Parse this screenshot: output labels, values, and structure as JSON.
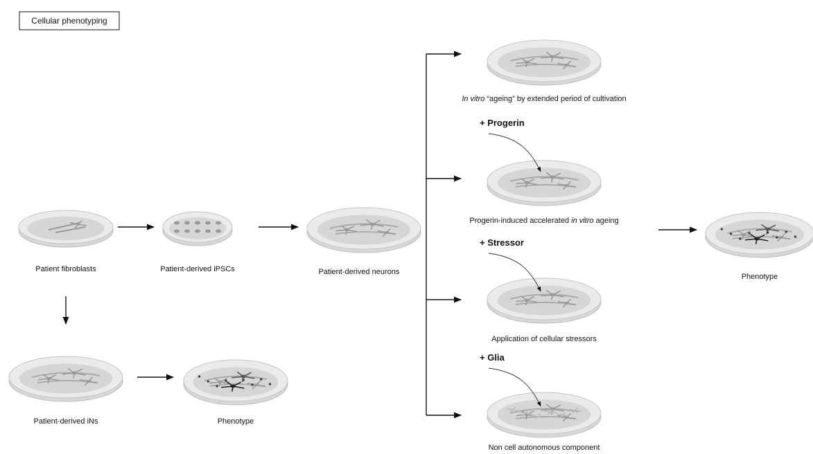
{
  "title": "Cellular phenotyping",
  "nodes": [
    {
      "label": "Patient fibroblasts"
    },
    {
      "label": "Patient-derived iPSCs"
    },
    {
      "label": "Patient-derived neurons"
    },
    {
      "label": "Patient-derived iNs"
    },
    {
      "label": "Phenotype"
    },
    {
      "label_parts": [
        "In vitro",
        "“ageing” by extended period of cultivation"
      ]
    },
    {
      "label_parts": [
        "Progerin-induced accelerated",
        "in vitro",
        "ageing"
      ]
    },
    {
      "label": "Application of cellular stressors"
    },
    {
      "label": "Non cell autonomous component"
    },
    {
      "label": "Phenotype"
    }
  ],
  "treatments": [
    {
      "label": "+ Progerin"
    },
    {
      "label": "+ Stressor"
    },
    {
      "label": "+ Glia"
    }
  ]
}
